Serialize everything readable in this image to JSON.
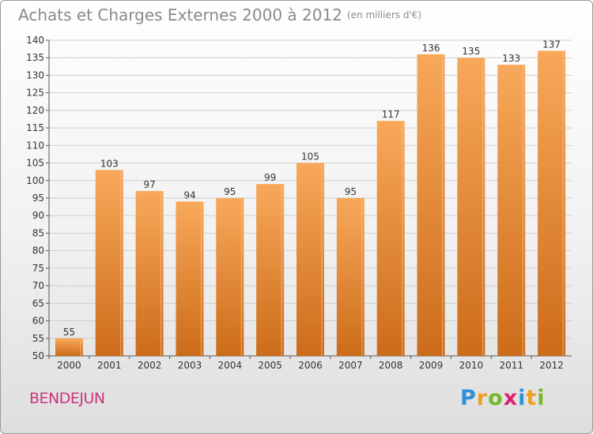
{
  "header": {
    "title": "Achats et Charges Externes 2000 à 2012",
    "unit": "(en milliers d'€)"
  },
  "region": "BENDEJUN",
  "logo": {
    "letters": [
      {
        "char": "P",
        "color": "#2f8fd8"
      },
      {
        "char": "r",
        "color": "#f0a020"
      },
      {
        "char": "o",
        "color": "#76b82a"
      },
      {
        "char": "x",
        "color": "#e02070"
      },
      {
        "char": "i",
        "color": "#2f8fd8"
      },
      {
        "char": "t",
        "color": "#f0a020"
      },
      {
        "char": "i",
        "color": "#76b82a"
      }
    ]
  },
  "colors": {
    "bar_top": "#f8a85a",
    "bar_bottom": "#cc6c1a",
    "grid": "#cfcfcf",
    "axis": "#555555"
  },
  "chart_data": {
    "type": "bar",
    "categories": [
      "2000",
      "2001",
      "2002",
      "2003",
      "2004",
      "2005",
      "2006",
      "2007",
      "2008",
      "2009",
      "2010",
      "2011",
      "2012"
    ],
    "values": [
      55,
      103,
      97,
      94,
      95,
      99,
      105,
      95,
      117,
      136,
      135,
      133,
      137
    ],
    "ylim": [
      50,
      140
    ],
    "yticks": [
      50,
      55,
      60,
      65,
      70,
      75,
      80,
      85,
      90,
      95,
      100,
      105,
      110,
      115,
      120,
      125,
      130,
      135,
      140
    ],
    "grid": true
  }
}
